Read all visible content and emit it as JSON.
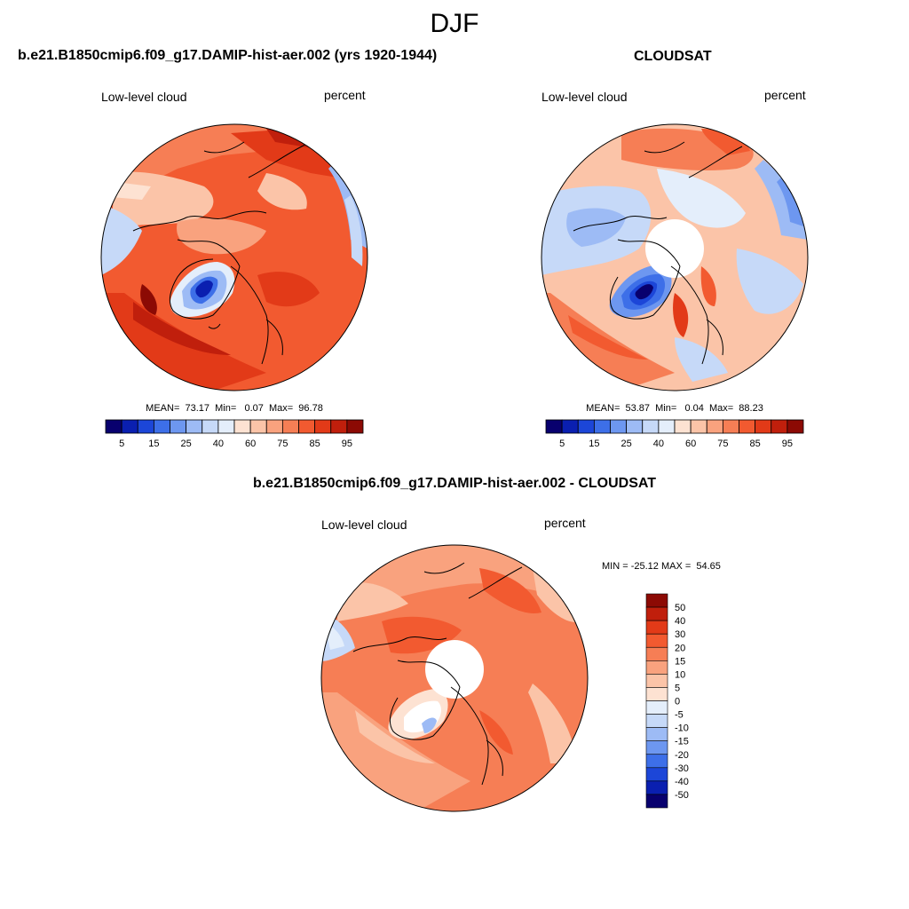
{
  "season": "DJF",
  "left_panel": {
    "title": "b.e21.B1850cmip6.f09_g17.DAMIP-hist-aer.002 (yrs 1920-1944)",
    "left_label": "Low-level cloud",
    "right_label": "percent",
    "stats": "MEAN=  73.17  Min=   0.07  Max=  96.78",
    "colorbar_ticks": [
      "5",
      "15",
      "25",
      "40",
      "60",
      "75",
      "85",
      "95"
    ]
  },
  "right_panel": {
    "title": "CLOUDSAT",
    "left_label": "Low-level cloud",
    "right_label": "percent",
    "stats": "MEAN=  53.87  Min=   0.04  Max=  88.23",
    "colorbar_ticks": [
      "5",
      "15",
      "25",
      "40",
      "60",
      "75",
      "85",
      "95"
    ]
  },
  "diff_panel": {
    "title": "b.e21.B1850cmip6.f09_g17.DAMIP-hist-aer.002 - CLOUDSAT",
    "left_label": "Low-level cloud",
    "right_label": "percent",
    "stats": "MIN = -25.12 MAX =  54.65",
    "colorbar_ticks": [
      "50",
      "40",
      "30",
      "20",
      "15",
      "10",
      "5",
      "0",
      "-5",
      "-10",
      "-15",
      "-20",
      "-30",
      "-40",
      "-50"
    ]
  },
  "colors": {
    "abs_scale": [
      "#08006e",
      "#0a1fb0",
      "#1c46d8",
      "#3d6fe8",
      "#6d97f0",
      "#9dbbf5",
      "#c6d9f8",
      "#e4eefb",
      "#fde2d2",
      "#fbc4a8",
      "#f9a27e",
      "#f67e55",
      "#f25a30",
      "#e23a18",
      "#c01f0c",
      "#8c0a04"
    ],
    "diff_scale": [
      "#8c0a04",
      "#c01f0c",
      "#e23a18",
      "#f25a30",
      "#f67e55",
      "#f9a27e",
      "#fbc4a8",
      "#fde2d2",
      "#e4eefb",
      "#c6d9f8",
      "#9dbbf5",
      "#6d97f0",
      "#3d6fe8",
      "#1c46d8",
      "#0a1fb0",
      "#08006e"
    ]
  }
}
